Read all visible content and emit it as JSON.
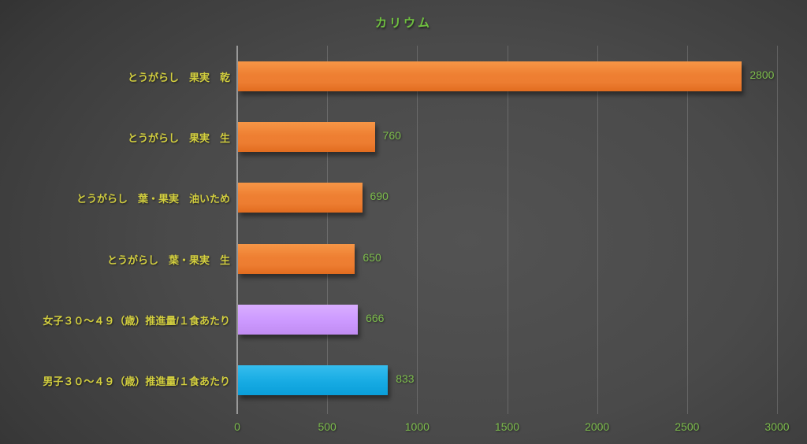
{
  "chart_data": {
    "type": "bar",
    "orientation": "horizontal",
    "title": "カリウム",
    "categories": [
      "とうがらし　果実　乾",
      "とうがらし　果実　生",
      "とうがらし　葉・果実　油いため",
      "とうがらし　葉・果実　生",
      "女子３０～４９（歳）推進量/１食あたり",
      "男子３０～４９（歳）推進量/１食あたり"
    ],
    "values": [
      2800,
      760,
      690,
      650,
      666,
      833
    ],
    "bar_color_keys": [
      "orange",
      "orange",
      "orange",
      "orange",
      "purple",
      "blue"
    ],
    "colors": {
      "orange": "#ED7D31",
      "purple": "#CC99FF",
      "blue": "#15ABE3",
      "title_green": "#6FC13F",
      "label_green": "#7DBD4C",
      "category_yellow": "#D2CE3F",
      "gridline": "#6E6E6E",
      "axisline": "#A6A6A6",
      "background_dark": "#2B2B2B"
    },
    "xlabel": "",
    "ylabel": "",
    "xlim": [
      0,
      3000
    ],
    "x_ticks": [
      0,
      500,
      1000,
      1500,
      2000,
      2500,
      3000
    ],
    "grid": true,
    "legend": "none"
  }
}
